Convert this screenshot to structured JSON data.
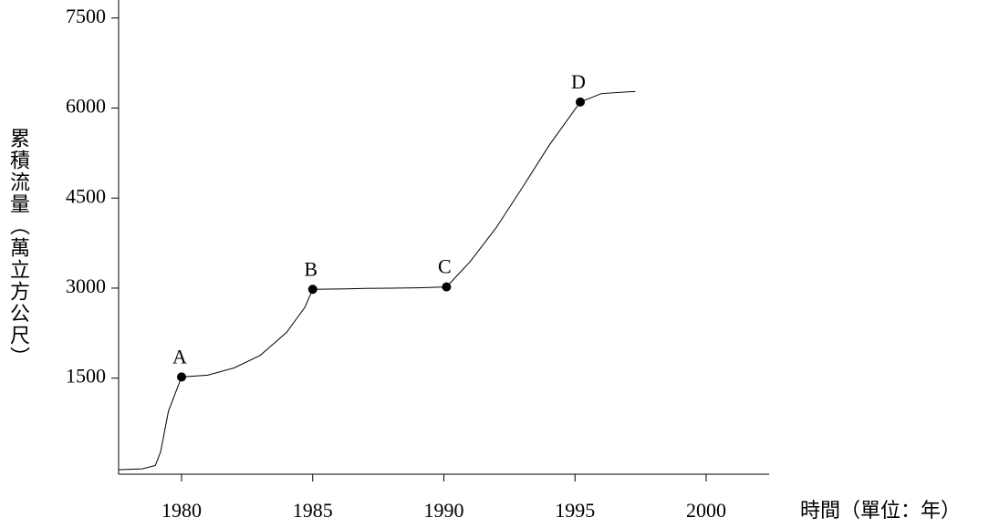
{
  "chart_data": {
    "type": "line",
    "y_label": "累積流量（萬立方公尺）",
    "x_label": "時間（單位：年）",
    "x": [
      1977.6,
      1978.5,
      1979.0,
      1979.2,
      1979.5,
      1980,
      1981,
      1982,
      1983,
      1984,
      1984.7,
      1985,
      1986,
      1987,
      1988,
      1989,
      1990.1,
      1991,
      1992,
      1993,
      1994,
      1995.2,
      1996,
      1997,
      1997.3
    ],
    "series": [
      {
        "color": "#000000",
        "values": [
          -25,
          -10,
          45,
          270,
          950,
          1520,
          1550,
          1670,
          1880,
          2260,
          2680,
          2980,
          2985,
          2995,
          3000,
          3005,
          3020,
          3440,
          4010,
          4680,
          5370,
          6100,
          6240,
          6270,
          6275
        ]
      }
    ],
    "points": {
      "labels": [
        "A",
        "B",
        "C",
        "D"
      ],
      "x": [
        1980,
        1985,
        1990.1,
        1995.2
      ],
      "values": [
        1520,
        2980,
        3020,
        6100
      ],
      "color": "#000000"
    },
    "xlim": [
      1977.6,
      2002.4
    ],
    "ylim": [
      -100,
      7800
    ],
    "xticks": [
      1980,
      1985,
      1990,
      1995,
      2000
    ],
    "yticks": [
      1500,
      3000,
      4500,
      6000,
      7500
    ]
  }
}
